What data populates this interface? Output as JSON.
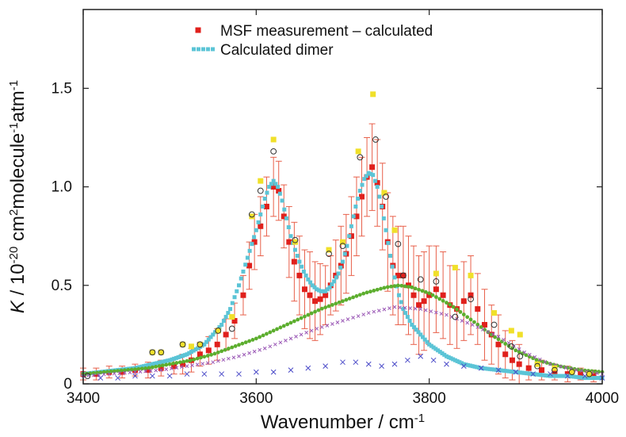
{
  "chart_data": {
    "type": "scatter",
    "title": "",
    "xlabel": "Wavenumber / cm",
    "xlabel_sup": "-1",
    "ylabel_parts": [
      {
        "text": "K",
        "italic": true
      },
      {
        "text": " / 10"
      },
      {
        "text": "-20",
        "sup": true
      },
      {
        "text": " cm"
      },
      {
        "text": "2",
        "sup": true
      },
      {
        "text": "molecule"
      },
      {
        "text": "-1",
        "sup": true
      },
      {
        "text": "atm"
      },
      {
        "text": "-1",
        "sup": true
      }
    ],
    "xlim": [
      3400,
      4000
    ],
    "ylim": [
      0,
      1.9
    ],
    "x_ticks": [
      3400,
      3600,
      3800,
      4000
    ],
    "x_tick_labels": [
      "3400",
      "3600",
      "3800",
      "4000"
    ],
    "y_ticks": [
      0,
      0.5,
      1.0,
      1.5
    ],
    "y_tick_labels": [
      "0",
      "0.5",
      "1.0",
      "1.5"
    ],
    "grid": false,
    "legend_position": "top-center",
    "legend": [
      {
        "label": "MSF measurement – calculated",
        "color": "#e0201c",
        "marker": "square"
      },
      {
        "label": "Calculated dimer",
        "color": "#5bc4d6",
        "marker": "dashed-line"
      }
    ],
    "series": [
      {
        "name": "MSF measurement – calculated",
        "color": "#e0201c",
        "marker": "square-errorbar",
        "points": [
          [
            3400,
            0.05,
            0.03
          ],
          [
            3415,
            0.05,
            0.03
          ],
          [
            3430,
            0.06,
            0.03
          ],
          [
            3445,
            0.06,
            0.03
          ],
          [
            3460,
            0.07,
            0.03
          ],
          [
            3475,
            0.07,
            0.04
          ],
          [
            3490,
            0.08,
            0.04
          ],
          [
            3505,
            0.09,
            0.04
          ],
          [
            3515,
            0.1,
            0.05
          ],
          [
            3525,
            0.12,
            0.06
          ],
          [
            3535,
            0.15,
            0.06
          ],
          [
            3545,
            0.17,
            0.07
          ],
          [
            3555,
            0.2,
            0.08
          ],
          [
            3565,
            0.25,
            0.08
          ],
          [
            3575,
            0.32,
            0.09
          ],
          [
            3585,
            0.45,
            0.1
          ],
          [
            3592,
            0.6,
            0.12
          ],
          [
            3598,
            0.72,
            0.14
          ],
          [
            3605,
            0.8,
            0.15
          ],
          [
            3612,
            0.9,
            0.15
          ],
          [
            3620,
            1.0,
            0.15
          ],
          [
            3626,
            0.98,
            0.15
          ],
          [
            3632,
            0.85,
            0.16
          ],
          [
            3638,
            0.72,
            0.18
          ],
          [
            3644,
            0.62,
            0.2
          ],
          [
            3650,
            0.55,
            0.2
          ],
          [
            3656,
            0.48,
            0.2
          ],
          [
            3662,
            0.45,
            0.22
          ],
          [
            3668,
            0.42,
            0.2
          ],
          [
            3674,
            0.43,
            0.18
          ],
          [
            3680,
            0.45,
            0.15
          ],
          [
            3686,
            0.5,
            0.15
          ],
          [
            3692,
            0.55,
            0.18
          ],
          [
            3698,
            0.6,
            0.2
          ],
          [
            3704,
            0.66,
            0.2
          ],
          [
            3710,
            0.75,
            0.2
          ],
          [
            3716,
            0.85,
            0.2
          ],
          [
            3722,
            0.95,
            0.2
          ],
          [
            3728,
            1.05,
            0.2
          ],
          [
            3734,
            1.1,
            0.22
          ],
          [
            3740,
            1.02,
            0.22
          ],
          [
            3746,
            0.9,
            0.22
          ],
          [
            3752,
            0.72,
            0.25
          ],
          [
            3758,
            0.6,
            0.25
          ],
          [
            3764,
            0.55,
            0.25
          ],
          [
            3770,
            0.55,
            0.25
          ],
          [
            3776,
            0.5,
            0.25
          ],
          [
            3782,
            0.45,
            0.25
          ],
          [
            3788,
            0.4,
            0.25
          ],
          [
            3794,
            0.42,
            0.25
          ],
          [
            3800,
            0.45,
            0.25
          ],
          [
            3808,
            0.48,
            0.22
          ],
          [
            3816,
            0.45,
            0.22
          ],
          [
            3824,
            0.4,
            0.2
          ],
          [
            3832,
            0.38,
            0.2
          ],
          [
            3840,
            0.42,
            0.2
          ],
          [
            3848,
            0.45,
            0.2
          ],
          [
            3856,
            0.38,
            0.18
          ],
          [
            3864,
            0.3,
            0.18
          ],
          [
            3872,
            0.25,
            0.15
          ],
          [
            3880,
            0.2,
            0.15
          ],
          [
            3888,
            0.15,
            0.12
          ],
          [
            3896,
            0.12,
            0.1
          ],
          [
            3904,
            0.1,
            0.1
          ],
          [
            3915,
            0.08,
            0.06
          ],
          [
            3930,
            0.07,
            0.05
          ],
          [
            3945,
            0.06,
            0.04
          ],
          [
            3960,
            0.05,
            0.04
          ],
          [
            3975,
            0.05,
            0.03
          ],
          [
            3990,
            0.04,
            0.03
          ]
        ]
      },
      {
        "name": "Calculated dimer",
        "color": "#5bc4d6",
        "marker": "dense-squares",
        "x": [
          3400,
          3420,
          3440,
          3460,
          3480,
          3500,
          3520,
          3540,
          3560,
          3570,
          3580,
          3590,
          3600,
          3605,
          3610,
          3615,
          3620,
          3625,
          3630,
          3635,
          3640,
          3645,
          3650,
          3655,
          3660,
          3665,
          3670,
          3675,
          3680,
          3685,
          3690,
          3695,
          3700,
          3705,
          3710,
          3715,
          3720,
          3725,
          3730,
          3735,
          3740,
          3745,
          3750,
          3755,
          3760,
          3765,
          3770,
          3780,
          3790,
          3800,
          3820,
          3840,
          3860,
          3880,
          3900,
          3920,
          3940,
          3960,
          3980,
          4000
        ],
        "y": [
          0.05,
          0.06,
          0.07,
          0.08,
          0.1,
          0.12,
          0.15,
          0.2,
          0.3,
          0.38,
          0.5,
          0.64,
          0.78,
          0.86,
          0.94,
          1.0,
          1.03,
          1.0,
          0.93,
          0.84,
          0.75,
          0.68,
          0.62,
          0.57,
          0.53,
          0.5,
          0.48,
          0.47,
          0.47,
          0.49,
          0.52,
          0.56,
          0.62,
          0.7,
          0.8,
          0.9,
          0.98,
          1.04,
          1.07,
          1.06,
          1.0,
          0.9,
          0.78,
          0.65,
          0.54,
          0.45,
          0.38,
          0.3,
          0.25,
          0.2,
          0.14,
          0.1,
          0.08,
          0.07,
          0.06,
          0.05,
          0.04,
          0.04,
          0.03,
          0.03
        ]
      },
      {
        "name": "",
        "color": "#5cae2e",
        "marker": "dense-dots",
        "x": [
          3400,
          3425,
          3450,
          3475,
          3500,
          3525,
          3550,
          3575,
          3600,
          3625,
          3650,
          3675,
          3700,
          3725,
          3750,
          3765,
          3780,
          3800,
          3825,
          3850,
          3875,
          3900,
          3925,
          3950,
          3975,
          4000
        ],
        "y": [
          0.05,
          0.06,
          0.07,
          0.08,
          0.1,
          0.12,
          0.15,
          0.19,
          0.23,
          0.28,
          0.33,
          0.38,
          0.42,
          0.46,
          0.49,
          0.5,
          0.49,
          0.46,
          0.4,
          0.32,
          0.24,
          0.17,
          0.12,
          0.09,
          0.07,
          0.06
        ]
      },
      {
        "name": "",
        "color": "#9b59b6",
        "marker": "small-x",
        "x": [
          3400,
          3430,
          3460,
          3490,
          3520,
          3550,
          3580,
          3610,
          3640,
          3670,
          3700,
          3730,
          3760,
          3790,
          3820,
          3850,
          3880,
          3910,
          3940,
          3970,
          4000
        ],
        "y": [
          0.04,
          0.05,
          0.06,
          0.07,
          0.09,
          0.11,
          0.14,
          0.18,
          0.23,
          0.28,
          0.32,
          0.36,
          0.39,
          0.38,
          0.35,
          0.3,
          0.24,
          0.16,
          0.1,
          0.07,
          0.05
        ]
      },
      {
        "name": "",
        "color": "#4a4ac8",
        "marker": "x",
        "points": [
          [
            3420,
            0.03
          ],
          [
            3440,
            0.03
          ],
          [
            3460,
            0.04
          ],
          [
            3480,
            0.04
          ],
          [
            3500,
            0.04
          ],
          [
            3520,
            0.05
          ],
          [
            3540,
            0.05
          ],
          [
            3560,
            0.05
          ],
          [
            3580,
            0.05
          ],
          [
            3600,
            0.06
          ],
          [
            3620,
            0.06
          ],
          [
            3640,
            0.07
          ],
          [
            3660,
            0.08
          ],
          [
            3680,
            0.09
          ],
          [
            3700,
            0.11
          ],
          [
            3715,
            0.11
          ],
          [
            3730,
            0.1
          ],
          [
            3745,
            0.09
          ],
          [
            3760,
            0.1
          ],
          [
            3775,
            0.12
          ],
          [
            3790,
            0.14
          ],
          [
            3805,
            0.12
          ],
          [
            3820,
            0.1
          ],
          [
            3840,
            0.09
          ],
          [
            3860,
            0.08
          ],
          [
            3880,
            0.07
          ],
          [
            3900,
            0.06
          ],
          [
            3920,
            0.05
          ],
          [
            3940,
            0.05
          ],
          [
            3960,
            0.04
          ],
          [
            3980,
            0.04
          ],
          [
            4000,
            0.03
          ]
        ]
      },
      {
        "name": "",
        "color": "#f0e02a",
        "marker": "square",
        "points": [
          [
            3480,
            0.16
          ],
          [
            3490,
            0.16
          ],
          [
            3515,
            0.2
          ],
          [
            3525,
            0.19
          ],
          [
            3535,
            0.2
          ],
          [
            3556,
            0.27
          ],
          [
            3572,
            0.34
          ],
          [
            3595,
            0.85
          ],
          [
            3605,
            1.03
          ],
          [
            3620,
            1.24
          ],
          [
            3645,
            0.72
          ],
          [
            3684,
            0.68
          ],
          [
            3700,
            0.72
          ],
          [
            3718,
            1.18
          ],
          [
            3735,
            1.47
          ],
          [
            3748,
            0.97
          ],
          [
            3760,
            0.78
          ],
          [
            3808,
            0.56
          ],
          [
            3830,
            0.59
          ],
          [
            3848,
            0.55
          ],
          [
            3875,
            0.36
          ],
          [
            3895,
            0.27
          ],
          [
            3905,
            0.25
          ],
          [
            3925,
            0.1
          ],
          [
            3945,
            0.08
          ],
          [
            3965,
            0.06
          ],
          [
            3985,
            0.05
          ]
        ]
      },
      {
        "name": "",
        "color": "#333333",
        "marker": "circle",
        "points": [
          [
            3405,
            0.04
          ],
          [
            3480,
            0.16
          ],
          [
            3490,
            0.16
          ],
          [
            3515,
            0.2
          ],
          [
            3535,
            0.2
          ],
          [
            3556,
            0.27
          ],
          [
            3572,
            0.28
          ],
          [
            3595,
            0.86
          ],
          [
            3605,
            0.98
          ],
          [
            3620,
            1.18
          ],
          [
            3645,
            0.73
          ],
          [
            3684,
            0.66
          ],
          [
            3700,
            0.7
          ],
          [
            3720,
            1.15
          ],
          [
            3738,
            1.24
          ],
          [
            3750,
            0.95
          ],
          [
            3764,
            0.71
          ],
          [
            3770,
            0.55
          ],
          [
            3790,
            0.53
          ],
          [
            3808,
            0.52
          ],
          [
            3830,
            0.34
          ],
          [
            3848,
            0.43
          ],
          [
            3875,
            0.3
          ],
          [
            3895,
            0.19
          ],
          [
            3905,
            0.14
          ],
          [
            3925,
            0.09
          ],
          [
            3945,
            0.07
          ],
          [
            3965,
            0.06
          ],
          [
            3985,
            0.05
          ]
        ]
      }
    ]
  }
}
